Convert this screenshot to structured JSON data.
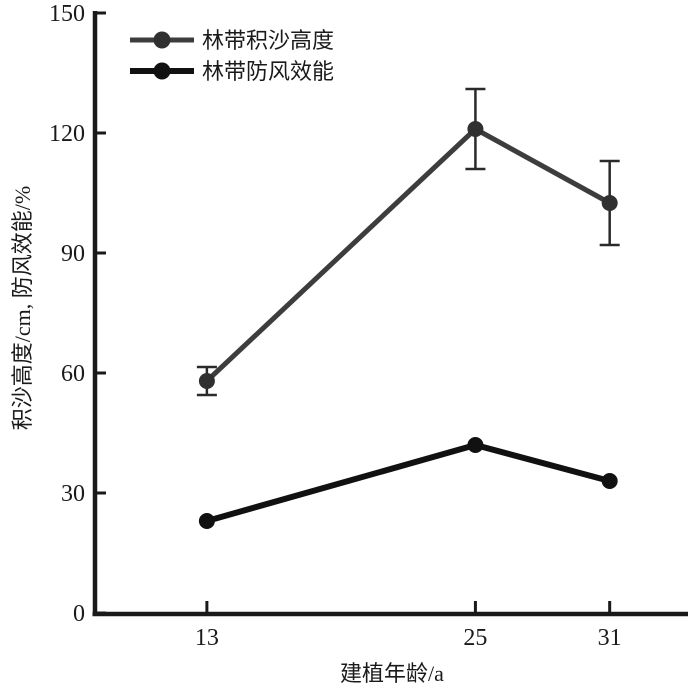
{
  "page": {
    "background": "#ffffff"
  },
  "chart_data": {
    "type": "line",
    "title": "",
    "xlabel": "建植年龄/a",
    "ylabel": "积沙高度/cm, 防风效能/%",
    "x": [
      13,
      25,
      31
    ],
    "xlim": [
      8,
      34.5
    ],
    "ylim": [
      0,
      150
    ],
    "yticks": [
      0,
      30,
      60,
      90,
      120,
      150
    ],
    "xticks": [
      13,
      25,
      31
    ],
    "grid": false,
    "legend_position": "top-left",
    "axis_color": "#1a1a1a",
    "series": [
      {
        "name": "林带积沙高度",
        "values": [
          58,
          121,
          102.5
        ],
        "errors": [
          3.5,
          10,
          10.5
        ],
        "line_color": "#3d3d3d",
        "marker_color": "#303030",
        "error_color": "#2a2a2a"
      },
      {
        "name": "林带防风效能",
        "values": [
          23,
          42,
          33
        ],
        "errors": [
          0,
          0,
          0
        ],
        "line_color": "#111111",
        "marker_color": "#111111",
        "error_color": "#111111"
      }
    ]
  }
}
